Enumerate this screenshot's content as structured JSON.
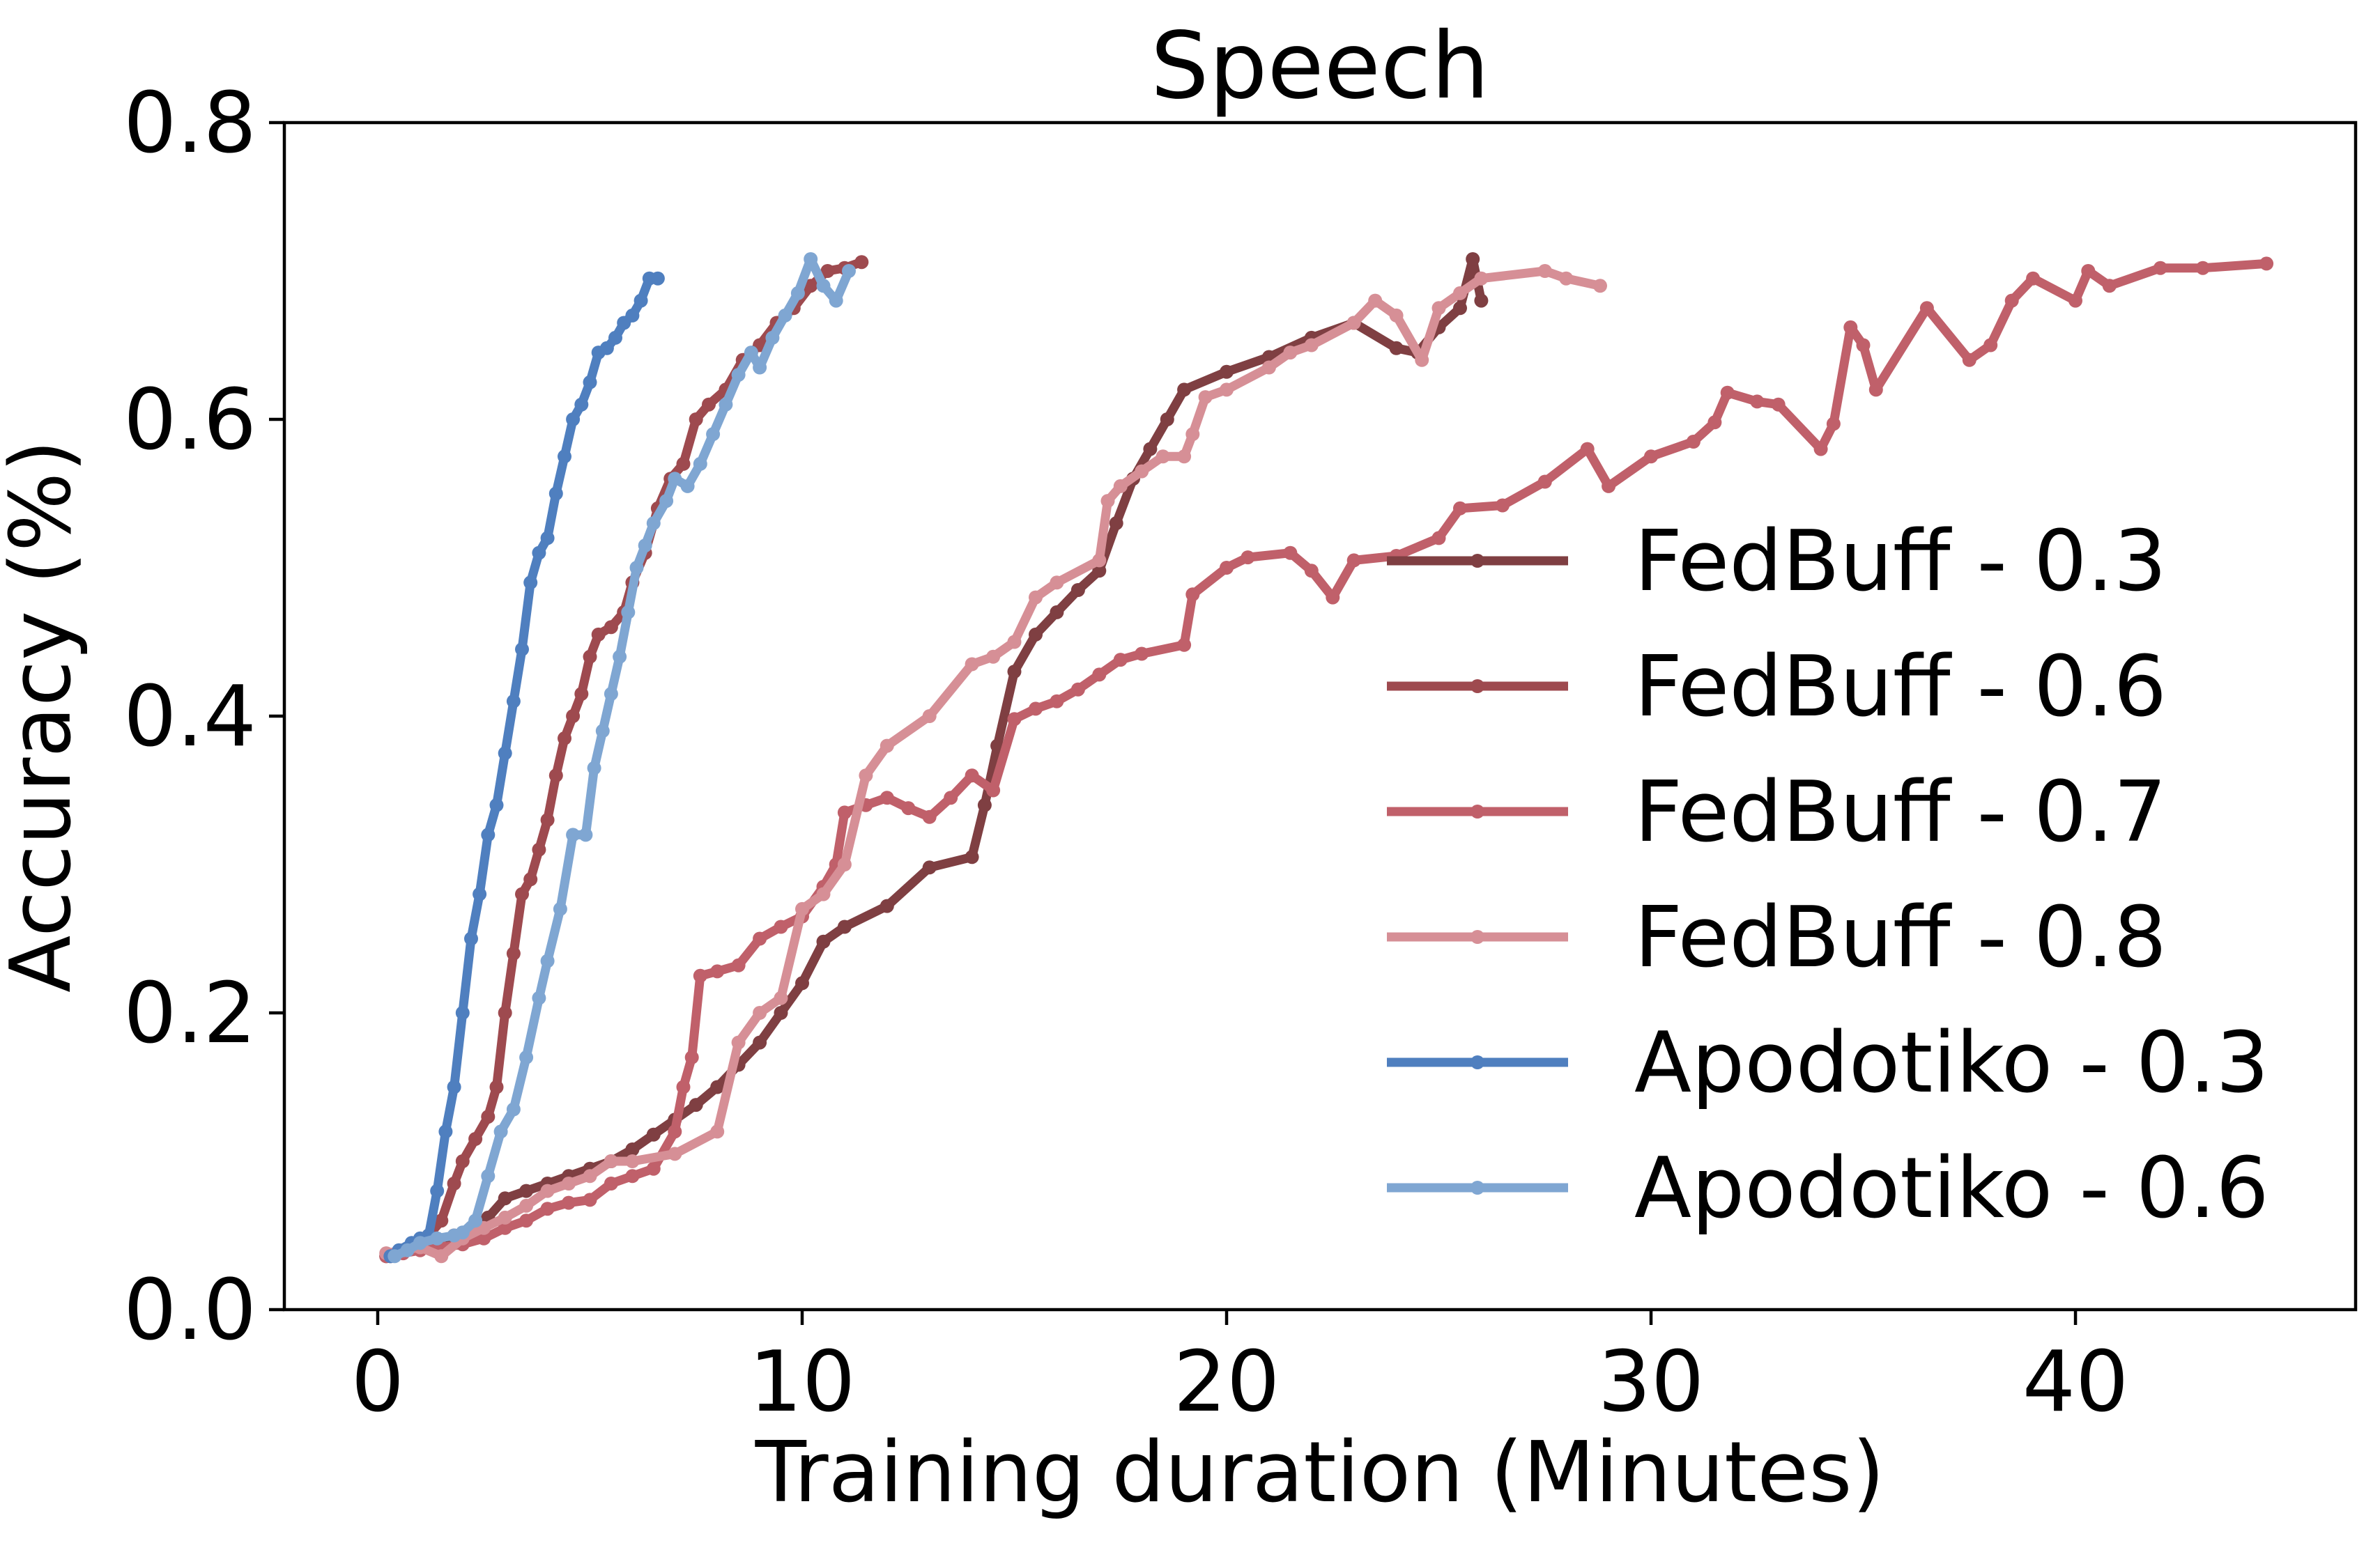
{
  "chart_data": {
    "type": "line",
    "title": "Speech",
    "xlabel": "Training duration (Minutes)",
    "ylabel": "Accuracy (%)",
    "xlim": [
      -2.2,
      46.6
    ],
    "ylim": [
      0.0,
      0.8
    ],
    "xticks": [
      0,
      10,
      20,
      30,
      40
    ],
    "yticks": [
      0.0,
      0.2,
      0.4,
      0.6,
      0.8
    ],
    "grid": false,
    "legend_position": "right",
    "series": [
      {
        "name": "FedBuff - 0.3",
        "color": "#7f3f42",
        "points": [
          [
            0.2,
            0.036
          ],
          [
            0.6,
            0.04
          ],
          [
            1.0,
            0.042
          ],
          [
            1.4,
            0.045
          ],
          [
            1.8,
            0.05
          ],
          [
            2.2,
            0.055
          ],
          [
            2.6,
            0.062
          ],
          [
            3.0,
            0.075
          ],
          [
            3.5,
            0.08
          ],
          [
            4.0,
            0.085
          ],
          [
            4.5,
            0.09
          ],
          [
            5.0,
            0.095
          ],
          [
            5.5,
            0.1
          ],
          [
            6.0,
            0.108
          ],
          [
            6.5,
            0.118
          ],
          [
            7.0,
            0.128
          ],
          [
            7.5,
            0.138
          ],
          [
            8.0,
            0.15
          ],
          [
            8.5,
            0.165
          ],
          [
            9.0,
            0.18
          ],
          [
            9.5,
            0.2
          ],
          [
            10.0,
            0.22
          ],
          [
            10.5,
            0.248
          ],
          [
            11.0,
            0.258
          ],
          [
            12.0,
            0.272
          ],
          [
            13.0,
            0.298
          ],
          [
            14.0,
            0.305
          ],
          [
            14.3,
            0.34
          ],
          [
            14.6,
            0.38
          ],
          [
            15.0,
            0.43
          ],
          [
            15.5,
            0.455
          ],
          [
            16.0,
            0.47
          ],
          [
            16.5,
            0.485
          ],
          [
            17.0,
            0.498
          ],
          [
            17.4,
            0.53
          ],
          [
            17.8,
            0.56
          ],
          [
            18.2,
            0.58
          ],
          [
            18.6,
            0.6
          ],
          [
            19.0,
            0.62
          ],
          [
            20.0,
            0.632
          ],
          [
            21.0,
            0.642
          ],
          [
            22.0,
            0.655
          ],
          [
            23.0,
            0.665
          ],
          [
            24.0,
            0.648
          ],
          [
            24.5,
            0.645
          ],
          [
            25.0,
            0.662
          ],
          [
            25.5,
            0.675
          ],
          [
            25.8,
            0.708
          ],
          [
            26.0,
            0.68
          ]
        ]
      },
      {
        "name": "FedBuff - 0.6",
        "color": "#9e4a4f",
        "points": [
          [
            0.3,
            0.036
          ],
          [
            0.6,
            0.04
          ],
          [
            0.9,
            0.042
          ],
          [
            1.2,
            0.05
          ],
          [
            1.5,
            0.06
          ],
          [
            1.8,
            0.085
          ],
          [
            2.0,
            0.1
          ],
          [
            2.3,
            0.115
          ],
          [
            2.6,
            0.13
          ],
          [
            2.8,
            0.15
          ],
          [
            3.0,
            0.2
          ],
          [
            3.2,
            0.24
          ],
          [
            3.4,
            0.28
          ],
          [
            3.6,
            0.29
          ],
          [
            3.8,
            0.31
          ],
          [
            4.0,
            0.33
          ],
          [
            4.2,
            0.36
          ],
          [
            4.4,
            0.385
          ],
          [
            4.6,
            0.4
          ],
          [
            4.8,
            0.415
          ],
          [
            5.0,
            0.44
          ],
          [
            5.2,
            0.455
          ],
          [
            5.5,
            0.46
          ],
          [
            5.8,
            0.47
          ],
          [
            6.0,
            0.49
          ],
          [
            6.3,
            0.51
          ],
          [
            6.6,
            0.54
          ],
          [
            6.9,
            0.56
          ],
          [
            7.2,
            0.57
          ],
          [
            7.5,
            0.6
          ],
          [
            7.8,
            0.61
          ],
          [
            8.2,
            0.62
          ],
          [
            8.6,
            0.64
          ],
          [
            9.0,
            0.65
          ],
          [
            9.4,
            0.665
          ],
          [
            9.8,
            0.675
          ],
          [
            10.2,
            0.69
          ],
          [
            10.6,
            0.7
          ],
          [
            11.0,
            0.702
          ],
          [
            11.4,
            0.706
          ]
        ]
      },
      {
        "name": "FedBuff - 0.7",
        "color": "#c0606a",
        "points": [
          [
            0.2,
            0.036
          ],
          [
            0.6,
            0.038
          ],
          [
            1.0,
            0.04
          ],
          [
            1.5,
            0.042
          ],
          [
            2.0,
            0.044
          ],
          [
            2.5,
            0.048
          ],
          [
            3.0,
            0.055
          ],
          [
            3.5,
            0.06
          ],
          [
            4.0,
            0.068
          ],
          [
            4.5,
            0.072
          ],
          [
            5.0,
            0.074
          ],
          [
            5.5,
            0.085
          ],
          [
            6.0,
            0.09
          ],
          [
            6.5,
            0.095
          ],
          [
            7.0,
            0.12
          ],
          [
            7.2,
            0.15
          ],
          [
            7.4,
            0.17
          ],
          [
            7.6,
            0.225
          ],
          [
            8.0,
            0.228
          ],
          [
            8.5,
            0.232
          ],
          [
            9.0,
            0.25
          ],
          [
            9.5,
            0.258
          ],
          [
            10.0,
            0.265
          ],
          [
            10.5,
            0.285
          ],
          [
            10.8,
            0.3
          ],
          [
            11.0,
            0.335
          ],
          [
            11.5,
            0.34
          ],
          [
            12.0,
            0.345
          ],
          [
            12.5,
            0.338
          ],
          [
            13.0,
            0.332
          ],
          [
            13.5,
            0.345
          ],
          [
            14.0,
            0.36
          ],
          [
            14.5,
            0.35
          ],
          [
            15.0,
            0.398
          ],
          [
            15.5,
            0.405
          ],
          [
            16.0,
            0.41
          ],
          [
            16.5,
            0.418
          ],
          [
            17.0,
            0.428
          ],
          [
            17.5,
            0.438
          ],
          [
            18.0,
            0.442
          ],
          [
            19.0,
            0.448
          ],
          [
            19.2,
            0.482
          ],
          [
            20.0,
            0.5
          ],
          [
            20.5,
            0.507
          ],
          [
            21.5,
            0.51
          ],
          [
            22.0,
            0.498
          ],
          [
            22.5,
            0.48
          ],
          [
            23.0,
            0.505
          ],
          [
            24.0,
            0.508
          ],
          [
            25.0,
            0.52
          ],
          [
            25.5,
            0.54
          ],
          [
            26.5,
            0.542
          ],
          [
            27.5,
            0.558
          ],
          [
            28.5,
            0.58
          ],
          [
            29.0,
            0.555
          ],
          [
            30.0,
            0.575
          ],
          [
            31.0,
            0.585
          ],
          [
            31.5,
            0.598
          ],
          [
            31.8,
            0.618
          ],
          [
            32.5,
            0.612
          ],
          [
            33.0,
            0.61
          ],
          [
            34.0,
            0.58
          ],
          [
            34.3,
            0.597
          ],
          [
            34.7,
            0.662
          ],
          [
            35.0,
            0.65
          ],
          [
            35.3,
            0.62
          ],
          [
            36.5,
            0.675
          ],
          [
            37.5,
            0.64
          ],
          [
            38.0,
            0.65
          ],
          [
            38.5,
            0.68
          ],
          [
            39.0,
            0.695
          ],
          [
            40.0,
            0.68
          ],
          [
            40.3,
            0.7
          ],
          [
            40.8,
            0.69
          ],
          [
            42.0,
            0.702
          ],
          [
            43.0,
            0.702
          ],
          [
            44.5,
            0.705
          ]
        ]
      },
      {
        "name": "FedBuff - 0.8",
        "color": "#d68f96",
        "points": [
          [
            0.2,
            0.038
          ],
          [
            0.6,
            0.04
          ],
          [
            1.0,
            0.042
          ],
          [
            1.5,
            0.036
          ],
          [
            2.0,
            0.048
          ],
          [
            2.5,
            0.055
          ],
          [
            3.0,
            0.062
          ],
          [
            3.5,
            0.07
          ],
          [
            4.0,
            0.08
          ],
          [
            4.5,
            0.085
          ],
          [
            5.0,
            0.09
          ],
          [
            5.5,
            0.1
          ],
          [
            6.0,
            0.1
          ],
          [
            7.0,
            0.105
          ],
          [
            8.0,
            0.12
          ],
          [
            8.5,
            0.18
          ],
          [
            9.0,
            0.2
          ],
          [
            9.5,
            0.21
          ],
          [
            10.0,
            0.27
          ],
          [
            10.5,
            0.28
          ],
          [
            11.0,
            0.3
          ],
          [
            11.5,
            0.36
          ],
          [
            12.0,
            0.38
          ],
          [
            13.0,
            0.4
          ],
          [
            14.0,
            0.435
          ],
          [
            14.5,
            0.44
          ],
          [
            15.0,
            0.45
          ],
          [
            15.5,
            0.48
          ],
          [
            16.0,
            0.49
          ],
          [
            17.0,
            0.505
          ],
          [
            17.2,
            0.545
          ],
          [
            17.5,
            0.555
          ],
          [
            18.0,
            0.565
          ],
          [
            18.5,
            0.575
          ],
          [
            19.0,
            0.575
          ],
          [
            19.2,
            0.59
          ],
          [
            19.5,
            0.615
          ],
          [
            20.0,
            0.62
          ],
          [
            21.0,
            0.635
          ],
          [
            21.5,
            0.645
          ],
          [
            22.0,
            0.65
          ],
          [
            23.0,
            0.665
          ],
          [
            23.5,
            0.68
          ],
          [
            24.0,
            0.67
          ],
          [
            24.6,
            0.64
          ],
          [
            25.0,
            0.675
          ],
          [
            25.5,
            0.685
          ],
          [
            26.0,
            0.695
          ],
          [
            27.5,
            0.7
          ],
          [
            28.0,
            0.695
          ],
          [
            28.8,
            0.69
          ]
        ]
      },
      {
        "name": "Apodotiko - 0.3",
        "color": "#4f7fbf",
        "points": [
          [
            0.3,
            0.036
          ],
          [
            0.5,
            0.04
          ],
          [
            0.8,
            0.045
          ],
          [
            1.0,
            0.048
          ],
          [
            1.2,
            0.05
          ],
          [
            1.4,
            0.08
          ],
          [
            1.6,
            0.12
          ],
          [
            1.8,
            0.15
          ],
          [
            2.0,
            0.2
          ],
          [
            2.2,
            0.25
          ],
          [
            2.4,
            0.28
          ],
          [
            2.6,
            0.32
          ],
          [
            2.8,
            0.34
          ],
          [
            3.0,
            0.375
          ],
          [
            3.2,
            0.41
          ],
          [
            3.4,
            0.445
          ],
          [
            3.6,
            0.49
          ],
          [
            3.8,
            0.51
          ],
          [
            4.0,
            0.52
          ],
          [
            4.2,
            0.55
          ],
          [
            4.4,
            0.575
          ],
          [
            4.6,
            0.6
          ],
          [
            4.8,
            0.61
          ],
          [
            5.0,
            0.625
          ],
          [
            5.2,
            0.645
          ],
          [
            5.4,
            0.648
          ],
          [
            5.6,
            0.655
          ],
          [
            5.8,
            0.665
          ],
          [
            6.0,
            0.67
          ],
          [
            6.2,
            0.68
          ],
          [
            6.4,
            0.695
          ],
          [
            6.6,
            0.695
          ]
        ]
      },
      {
        "name": "Apodotiko - 0.6",
        "color": "#7fa6d2",
        "points": [
          [
            0.4,
            0.036
          ],
          [
            0.7,
            0.04
          ],
          [
            1.0,
            0.045
          ],
          [
            1.4,
            0.048
          ],
          [
            1.8,
            0.05
          ],
          [
            2.0,
            0.052
          ],
          [
            2.3,
            0.06
          ],
          [
            2.6,
            0.09
          ],
          [
            2.9,
            0.12
          ],
          [
            3.2,
            0.135
          ],
          [
            3.5,
            0.17
          ],
          [
            3.8,
            0.21
          ],
          [
            4.0,
            0.235
          ],
          [
            4.3,
            0.27
          ],
          [
            4.6,
            0.32
          ],
          [
            4.9,
            0.32
          ],
          [
            5.1,
            0.365
          ],
          [
            5.3,
            0.39
          ],
          [
            5.5,
            0.415
          ],
          [
            5.7,
            0.44
          ],
          [
            5.9,
            0.47
          ],
          [
            6.1,
            0.5
          ],
          [
            6.3,
            0.515
          ],
          [
            6.5,
            0.53
          ],
          [
            6.8,
            0.545
          ],
          [
            7.0,
            0.56
          ],
          [
            7.3,
            0.555
          ],
          [
            7.6,
            0.57
          ],
          [
            7.9,
            0.59
          ],
          [
            8.2,
            0.61
          ],
          [
            8.5,
            0.63
          ],
          [
            8.8,
            0.645
          ],
          [
            9.0,
            0.635
          ],
          [
            9.3,
            0.655
          ],
          [
            9.6,
            0.67
          ],
          [
            9.9,
            0.685
          ],
          [
            10.2,
            0.708
          ],
          [
            10.5,
            0.69
          ],
          [
            10.8,
            0.68
          ],
          [
            11.1,
            0.7
          ]
        ]
      }
    ]
  }
}
